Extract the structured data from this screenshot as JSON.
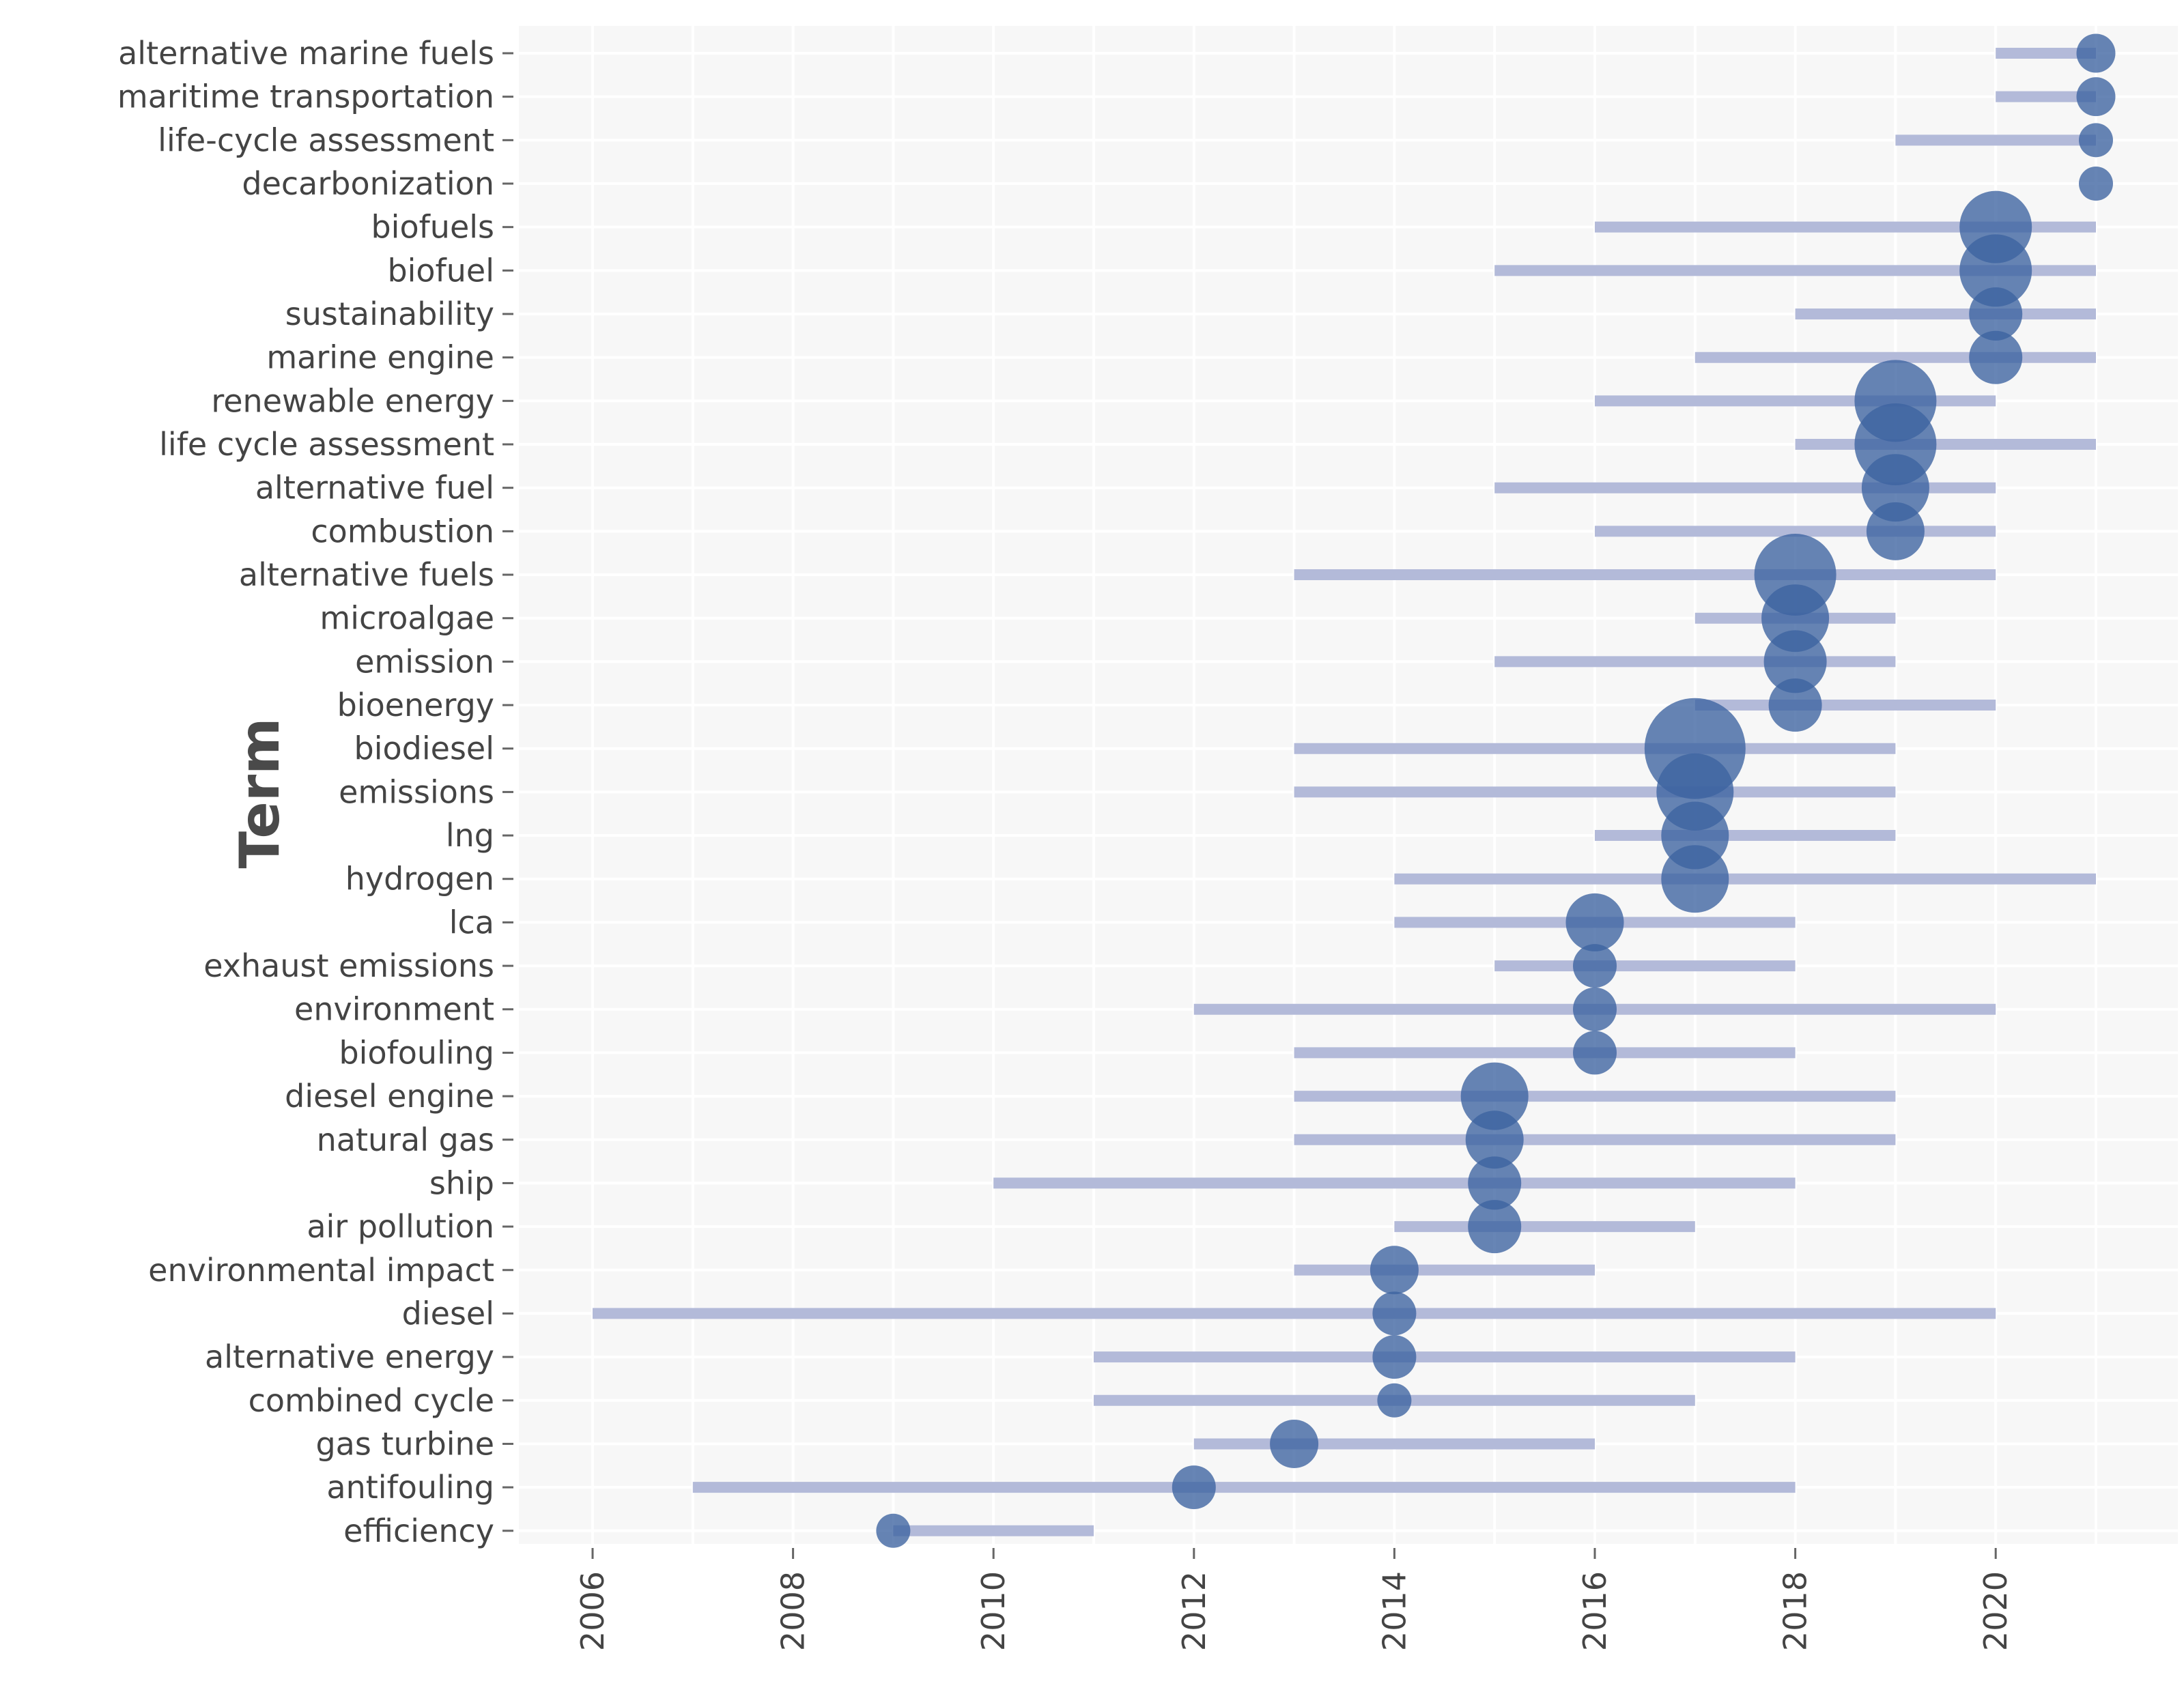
{
  "chart_data": {
    "type": "scatter",
    "title": "",
    "xlabel": "",
    "ylabel": "Term",
    "xlim": [
      2005.3,
      2021.8
    ],
    "x_ticks": [
      2006,
      2008,
      2010,
      2012,
      2014,
      2016,
      2018,
      2020
    ],
    "x_tick_labels": [
      "2006",
      "2008",
      "2010",
      "2012",
      "2014",
      "2016",
      "2018",
      "2020"
    ],
    "grid": true,
    "colors": {
      "panel": "#f7f7f7",
      "bubble": "#3c63a0",
      "range": "#b3bad9"
    },
    "series": [
      {
        "term": "alternative marine fuels",
        "start": 2020,
        "end": 2021,
        "peak": 2021,
        "freq": 3
      },
      {
        "term": "maritime transportation",
        "start": 2020,
        "end": 2021,
        "peak": 2021,
        "freq": 3
      },
      {
        "term": "life-cycle assessment",
        "start": 2019,
        "end": 2021,
        "peak": 2021,
        "freq": 2
      },
      {
        "term": "decarbonization",
        "start": 2021,
        "end": 2021,
        "peak": 2021,
        "freq": 2
      },
      {
        "term": "biofuels",
        "start": 2016,
        "end": 2021,
        "peak": 2020,
        "freq": 10
      },
      {
        "term": "biofuel",
        "start": 2015,
        "end": 2021,
        "peak": 2020,
        "freq": 10
      },
      {
        "term": "sustainability",
        "start": 2018,
        "end": 2021,
        "peak": 2020,
        "freq": 6
      },
      {
        "term": "marine engine",
        "start": 2017,
        "end": 2021,
        "peak": 2020,
        "freq": 6
      },
      {
        "term": "renewable energy",
        "start": 2016,
        "end": 2020,
        "peak": 2019,
        "freq": 12
      },
      {
        "term": "life cycle assessment",
        "start": 2018,
        "end": 2021,
        "peak": 2019,
        "freq": 12
      },
      {
        "term": "alternative fuel",
        "start": 2015,
        "end": 2020,
        "peak": 2019,
        "freq": 9
      },
      {
        "term": "combustion",
        "start": 2016,
        "end": 2020,
        "peak": 2019,
        "freq": 7
      },
      {
        "term": "alternative fuels",
        "start": 2013,
        "end": 2020,
        "peak": 2018,
        "freq": 12
      },
      {
        "term": "microalgae",
        "start": 2017,
        "end": 2019,
        "peak": 2018,
        "freq": 9
      },
      {
        "term": "emission",
        "start": 2015,
        "end": 2019,
        "peak": 2018,
        "freq": 8
      },
      {
        "term": "bioenergy",
        "start": 2017,
        "end": 2020,
        "peak": 2018,
        "freq": 6
      },
      {
        "term": "biodiesel",
        "start": 2013,
        "end": 2019,
        "peak": 2017,
        "freq": 16
      },
      {
        "term": "emissions",
        "start": 2013,
        "end": 2019,
        "peak": 2017,
        "freq": 11
      },
      {
        "term": "lng",
        "start": 2016,
        "end": 2019,
        "peak": 2017,
        "freq": 9
      },
      {
        "term": "hydrogen",
        "start": 2014,
        "end": 2021,
        "peak": 2017,
        "freq": 9
      },
      {
        "term": "lca",
        "start": 2014,
        "end": 2018,
        "peak": 2016,
        "freq": 7
      },
      {
        "term": "exhaust emissions",
        "start": 2015,
        "end": 2018,
        "peak": 2016,
        "freq": 4
      },
      {
        "term": "environment",
        "start": 2012,
        "end": 2020,
        "peak": 2016,
        "freq": 4
      },
      {
        "term": "biofouling",
        "start": 2013,
        "end": 2018,
        "peak": 2016,
        "freq": 4
      },
      {
        "term": "diesel engine",
        "start": 2013,
        "end": 2019,
        "peak": 2015,
        "freq": 9
      },
      {
        "term": "natural gas",
        "start": 2013,
        "end": 2019,
        "peak": 2015,
        "freq": 7
      },
      {
        "term": "ship",
        "start": 2010,
        "end": 2018,
        "peak": 2015,
        "freq": 6
      },
      {
        "term": "air pollution",
        "start": 2014,
        "end": 2017,
        "peak": 2015,
        "freq": 6
      },
      {
        "term": "environmental impact",
        "start": 2013,
        "end": 2016,
        "peak": 2014,
        "freq": 5
      },
      {
        "term": "diesel",
        "start": 2006,
        "end": 2020,
        "peak": 2014,
        "freq": 4
      },
      {
        "term": "alternative energy",
        "start": 2011,
        "end": 2018,
        "peak": 2014,
        "freq": 4
      },
      {
        "term": "combined cycle",
        "start": 2011,
        "end": 2017,
        "peak": 2014,
        "freq": 2
      },
      {
        "term": "gas turbine",
        "start": 2012,
        "end": 2016,
        "peak": 2013,
        "freq": 5
      },
      {
        "term": "antifouling",
        "start": 2007,
        "end": 2018,
        "peak": 2012,
        "freq": 4
      },
      {
        "term": "efficiency",
        "start": 2009,
        "end": 2011,
        "peak": 2009,
        "freq": 2
      }
    ]
  }
}
